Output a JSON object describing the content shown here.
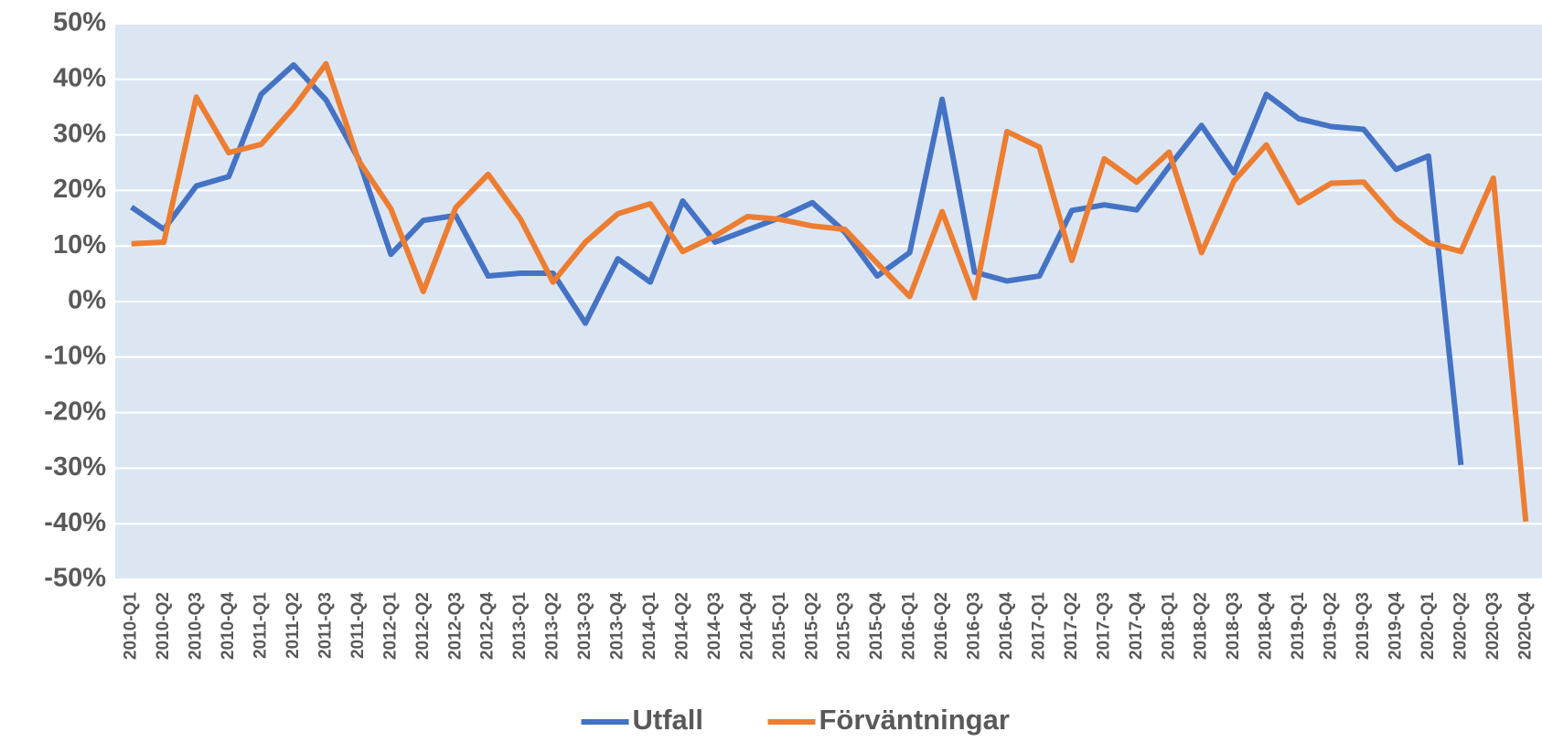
{
  "chart_data": {
    "type": "line",
    "categories": [
      "2010-Q1",
      "2010-Q2",
      "2010-Q3",
      "2010-Q4",
      "2011-Q1",
      "2011-Q2",
      "2011-Q3",
      "2011-Q4",
      "2012-Q1",
      "2012-Q2",
      "2012-Q3",
      "2012-Q4",
      "2013-Q1",
      "2013-Q2",
      "2013-Q3",
      "2013-Q4",
      "2014-Q1",
      "2014-Q2",
      "2014-Q3",
      "2014-Q4",
      "2015-Q1",
      "2015-Q2",
      "2015-Q3",
      "2015-Q4",
      "2016-Q1",
      "2016-Q2",
      "2016-Q3",
      "2016-Q4",
      "2017-Q1",
      "2017-Q2",
      "2017-Q3",
      "2017-Q4",
      "2018-Q1",
      "2018-Q2",
      "2018-Q3",
      "2018-Q4",
      "2019-Q1",
      "2019-Q2",
      "2019-Q3",
      "2019-Q4",
      "2020-Q1",
      "2020-Q2",
      "2020-Q3",
      "2020-Q4"
    ],
    "series": [
      {
        "name": "Utfall",
        "color": "#4472c4",
        "values": [
          17,
          13,
          20.8,
          22.5,
          37.3,
          42.6,
          36.3,
          25.7,
          8.5,
          14.6,
          15.5,
          4.6,
          5.1,
          5.1,
          -3.9,
          7.7,
          3.5,
          18.1,
          10.7,
          12.9,
          15.1,
          17.8,
          12.5,
          4.6,
          8.8,
          36.4,
          5.3,
          3.7,
          4.6,
          16.4,
          17.4,
          16.5,
          24.3,
          31.7,
          23.2,
          37.3,
          32.9,
          31.5,
          31,
          23.8,
          26.2,
          -29.4,
          null,
          null
        ]
      },
      {
        "name": "Förväntningar",
        "color": "#ed7d31",
        "values": [
          10.4,
          10.7,
          36.8,
          26.8,
          28.3,
          34.9,
          42.8,
          25.4,
          16.7,
          1.8,
          16.9,
          22.9,
          14.8,
          3.5,
          10.7,
          15.8,
          17.6,
          9,
          11.8,
          15.3,
          14.8,
          13.6,
          13,
          6.9,
          0.9,
          16.2,
          0.7,
          30.6,
          27.8,
          7.4,
          25.7,
          21.5,
          26.9,
          8.8,
          21.7,
          28.2,
          17.8,
          21.3,
          21.5,
          14.8,
          10.6,
          9,
          22.2,
          -39.6
        ]
      }
    ],
    "ylim": [
      -50,
      50
    ],
    "yticks": [
      {
        "value": -50,
        "label": "-50%"
      },
      {
        "value": -40,
        "label": "-40%"
      },
      {
        "value": -30,
        "label": "-30%"
      },
      {
        "value": -20,
        "label": "-20%"
      },
      {
        "value": -10,
        "label": "-10%"
      },
      {
        "value": 0,
        "label": "0%"
      },
      {
        "value": 10,
        "label": "10%"
      },
      {
        "value": 20,
        "label": "20%"
      },
      {
        "value": 30,
        "label": "30%"
      },
      {
        "value": 40,
        "label": "40%"
      },
      {
        "value": 50,
        "label": "50%"
      }
    ],
    "grid": true,
    "legend": "bottom"
  }
}
